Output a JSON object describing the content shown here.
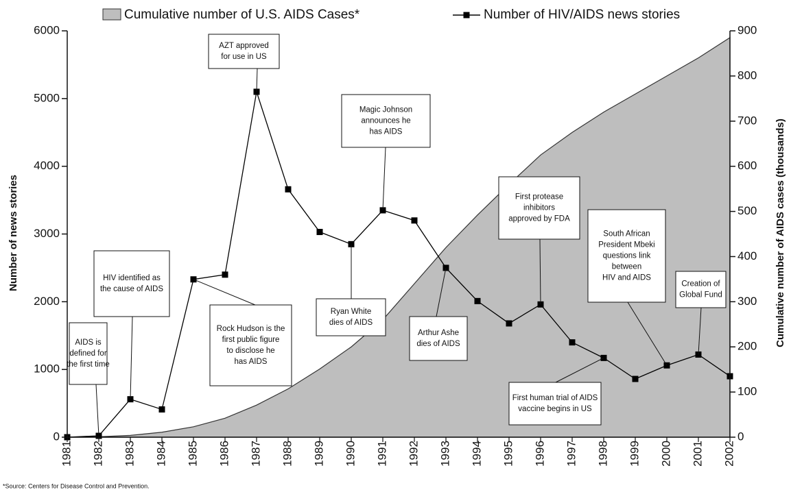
{
  "chart_data": {
    "type": "line",
    "categories": [
      "1981",
      "1982",
      "1983",
      "1984",
      "1985",
      "1986",
      "1987",
      "1988",
      "1989",
      "1990",
      "1991",
      "1992",
      "1993",
      "1994",
      "1995",
      "1996",
      "1997",
      "1998",
      "1999",
      "2000",
      "2001",
      "2002"
    ],
    "series": [
      {
        "name": "Cumulative number of U.S. AIDS Cases*",
        "type": "area",
        "axis": "y2",
        "color": "#bebebe",
        "values": [
          0,
          1,
          4,
          11,
          23,
          42,
          71,
          107,
          151,
          200,
          260,
          340,
          420,
          492,
          560,
          625,
          675,
          720,
          760,
          800,
          840,
          885
        ]
      },
      {
        "name": "Number of HIV/AIDS news stories",
        "type": "line",
        "color": "#000000",
        "values": [
          0,
          20,
          560,
          410,
          2330,
          2400,
          5100,
          3660,
          3030,
          2850,
          3350,
          3200,
          2500,
          2010,
          1680,
          1960,
          1400,
          1170,
          860,
          1060,
          1220,
          900
        ]
      }
    ],
    "ylabel": "Number of news stories",
    "y2label": "Cumulative number of AIDS cases (thousands)",
    "ylim": [
      0,
      6000
    ],
    "yticks": [
      0,
      1000,
      2000,
      3000,
      4000,
      5000,
      6000
    ],
    "y2lim": [
      0,
      900
    ],
    "y2ticks": [
      0,
      100,
      200,
      300,
      400,
      500,
      600,
      700,
      800,
      900
    ],
    "annotations": [
      [
        "AIDS is",
        "defined for",
        "the first time"
      ],
      [
        "HIV identified as",
        "the cause of AIDS"
      ],
      [
        "AZT approved",
        "for use in US"
      ],
      [
        "Rock Hudson is the",
        "first public figure",
        "to disclose he",
        "has AIDS"
      ],
      [
        "Magic Johnson",
        "announces he",
        "has AIDS"
      ],
      [
        "Ryan White",
        "dies of AIDS"
      ],
      [
        "Arthur Ashe",
        "dies of AIDS"
      ],
      [
        "First protease",
        "inhibitors",
        "approved by FDA"
      ],
      [
        "South African",
        "President Mbeki",
        "questions link",
        "between",
        "HIV and AIDS"
      ],
      [
        "Creation of",
        "Global Fund"
      ],
      [
        "First human trial of AIDS",
        "vaccine begins in US"
      ]
    ],
    "source": "*Source: Centers for Disease Control and Prevention."
  }
}
